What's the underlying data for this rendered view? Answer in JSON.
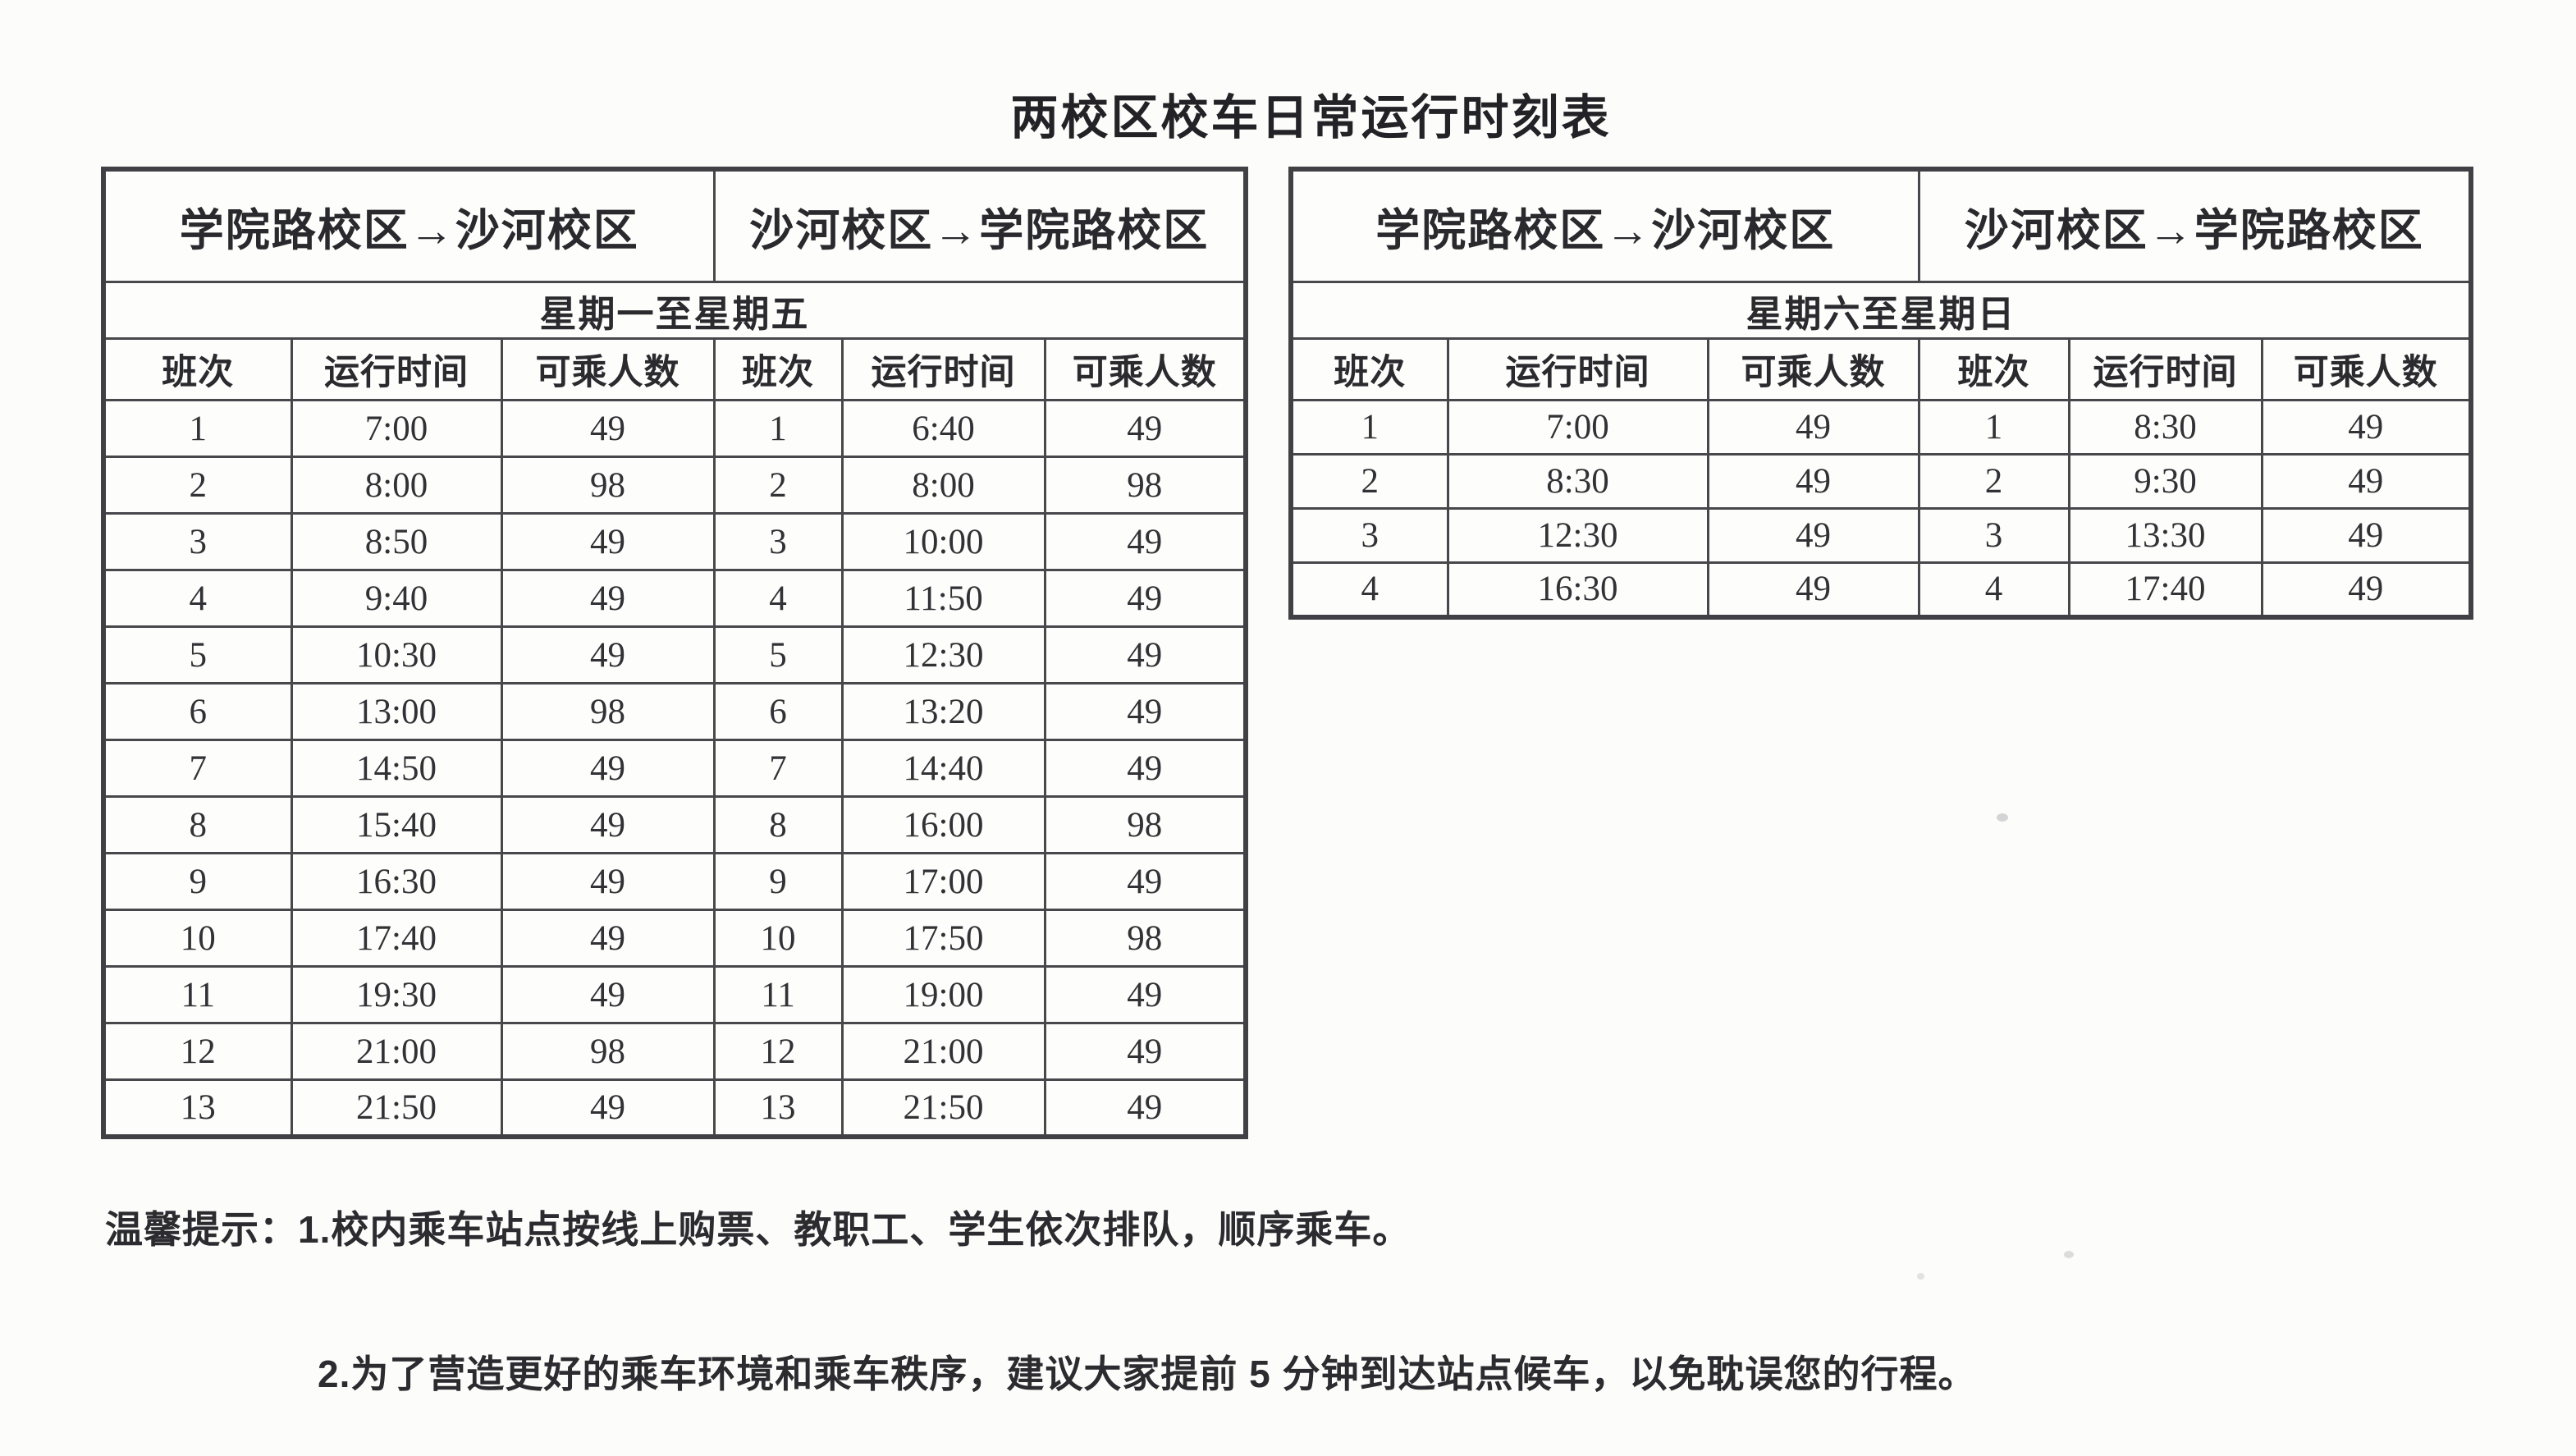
{
  "title": "两校区校车日常运行时刻表",
  "tables": [
    {
      "id": "weekday",
      "direction_headers": [
        "学院路校区→沙河校区",
        "沙河校区→学院路校区"
      ],
      "period": "星期一至星期五",
      "columns": [
        "班次",
        "运行时间",
        "可乘人数",
        "班次",
        "运行时间",
        "可乘人数"
      ],
      "rows": [
        [
          "1",
          "7:00",
          "49",
          "1",
          "6:40",
          "49"
        ],
        [
          "2",
          "8:00",
          "98",
          "2",
          "8:00",
          "98"
        ],
        [
          "3",
          "8:50",
          "49",
          "3",
          "10:00",
          "49"
        ],
        [
          "4",
          "9:40",
          "49",
          "4",
          "11:50",
          "49"
        ],
        [
          "5",
          "10:30",
          "49",
          "5",
          "12:30",
          "49"
        ],
        [
          "6",
          "13:00",
          "98",
          "6",
          "13:20",
          "49"
        ],
        [
          "7",
          "14:50",
          "49",
          "7",
          "14:40",
          "49"
        ],
        [
          "8",
          "15:40",
          "49",
          "8",
          "16:00",
          "98"
        ],
        [
          "9",
          "16:30",
          "49",
          "9",
          "17:00",
          "49"
        ],
        [
          "10",
          "17:40",
          "49",
          "10",
          "17:50",
          "98"
        ],
        [
          "11",
          "19:30",
          "49",
          "11",
          "19:00",
          "49"
        ],
        [
          "12",
          "21:00",
          "98",
          "12",
          "21:00",
          "49"
        ],
        [
          "13",
          "21:50",
          "49",
          "13",
          "21:50",
          "49"
        ]
      ]
    },
    {
      "id": "weekend",
      "direction_headers": [
        "学院路校区→沙河校区",
        "沙河校区→学院路校区"
      ],
      "period": "星期六至星期日",
      "columns": [
        "班次",
        "运行时间",
        "可乘人数",
        "班次",
        "运行时间",
        "可乘人数"
      ],
      "rows": [
        [
          "1",
          "7:00",
          "49",
          "1",
          "8:30",
          "49"
        ],
        [
          "2",
          "8:30",
          "49",
          "2",
          "9:30",
          "49"
        ],
        [
          "3",
          "12:30",
          "49",
          "3",
          "13:30",
          "49"
        ],
        [
          "4",
          "16:30",
          "49",
          "4",
          "17:40",
          "49"
        ]
      ]
    }
  ],
  "notes": {
    "prefix": "温馨提示：",
    "items": [
      "1.校内乘车站点按线上购票、教职工、学生依次排队，顺序乘车。",
      "2.为了营造更好的乘车环境和乘车秩序，建议大家提前 5 分钟到达站点候车，以免耽误您的行程。"
    ]
  }
}
